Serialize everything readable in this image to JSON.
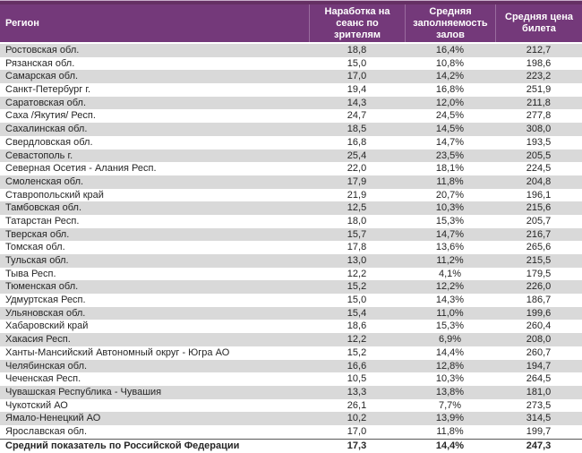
{
  "table": {
    "columns": [
      {
        "label": "Регион"
      },
      {
        "label": "Наработка на сеанс по зрителям"
      },
      {
        "label": "Средняя заполняемость залов"
      },
      {
        "label": "Средняя цена билета"
      }
    ],
    "rows": [
      [
        "Ростовская обл.",
        "18,8",
        "16,4%",
        "212,7"
      ],
      [
        "Рязанская обл.",
        "15,0",
        "10,8%",
        "198,6"
      ],
      [
        "Самарская обл.",
        "17,0",
        "14,2%",
        "223,2"
      ],
      [
        "Санкт-Петербург г.",
        "19,4",
        "16,8%",
        "251,9"
      ],
      [
        "Саратовская обл.",
        "14,3",
        "12,0%",
        "211,8"
      ],
      [
        "Саха /Якутия/ Респ.",
        "24,7",
        "24,5%",
        "277,8"
      ],
      [
        "Сахалинская обл.",
        "18,5",
        "14,5%",
        "308,0"
      ],
      [
        "Свердловская обл.",
        "16,8",
        "14,7%",
        "193,5"
      ],
      [
        "Севастополь г.",
        "25,4",
        "23,5%",
        "205,5"
      ],
      [
        "Северная Осетия - Алания Респ.",
        "22,0",
        "18,1%",
        "224,5"
      ],
      [
        "Смоленская обл.",
        "17,9",
        "11,8%",
        "204,8"
      ],
      [
        "Ставропольский край",
        "21,9",
        "20,7%",
        "196,1"
      ],
      [
        "Тамбовская обл.",
        "12,5",
        "10,3%",
        "215,6"
      ],
      [
        "Татарстан Респ.",
        "18,0",
        "15,3%",
        "205,7"
      ],
      [
        "Тверская обл.",
        "15,7",
        "14,7%",
        "216,7"
      ],
      [
        "Томская обл.",
        "17,8",
        "13,6%",
        "265,6"
      ],
      [
        "Тульская обл.",
        "13,0",
        "11,2%",
        "215,5"
      ],
      [
        "Тыва Респ.",
        "12,2",
        "4,1%",
        "179,5"
      ],
      [
        "Тюменская обл.",
        "15,2",
        "12,2%",
        "226,0"
      ],
      [
        "Удмуртская Респ.",
        "15,0",
        "14,3%",
        "186,7"
      ],
      [
        "Ульяновская обл.",
        "15,4",
        "11,0%",
        "199,6"
      ],
      [
        "Хабаровский край",
        "18,6",
        "15,3%",
        "260,4"
      ],
      [
        "Хакасия Респ.",
        "12,2",
        "6,9%",
        "208,0"
      ],
      [
        "Ханты-Мансийский Автономный округ - Югра АО",
        "15,2",
        "14,4%",
        "260,7"
      ],
      [
        "Челябинская обл.",
        "16,6",
        "12,8%",
        "194,7"
      ],
      [
        "Чеченская Респ.",
        "10,5",
        "10,3%",
        "264,5"
      ],
      [
        "Чувашская Республика - Чувашия",
        "13,3",
        "13,8%",
        "181,0"
      ],
      [
        "Чукотский АО",
        "26,1",
        "7,7%",
        "273,5"
      ],
      [
        "Ямало-Ненецкий АО",
        "10,2",
        "13,9%",
        "314,5"
      ],
      [
        "Ярославская обл.",
        "17,0",
        "11,8%",
        "199,7"
      ]
    ],
    "total_row": [
      "Средний показатель по Российской Федерации",
      "17,3",
      "14,4%",
      "247,3"
    ],
    "colors": {
      "header_background": "#74397a",
      "header_top_bar": "#653063",
      "header_top_line": "#c9aecb",
      "header_divider": "#9a6b9e",
      "header_text": "#ffffff",
      "stripe_row": "#d9d9d9",
      "body_text": "#262626",
      "total_top_border": "#595959",
      "table_bottom_border": "#a6a6a6"
    }
  }
}
